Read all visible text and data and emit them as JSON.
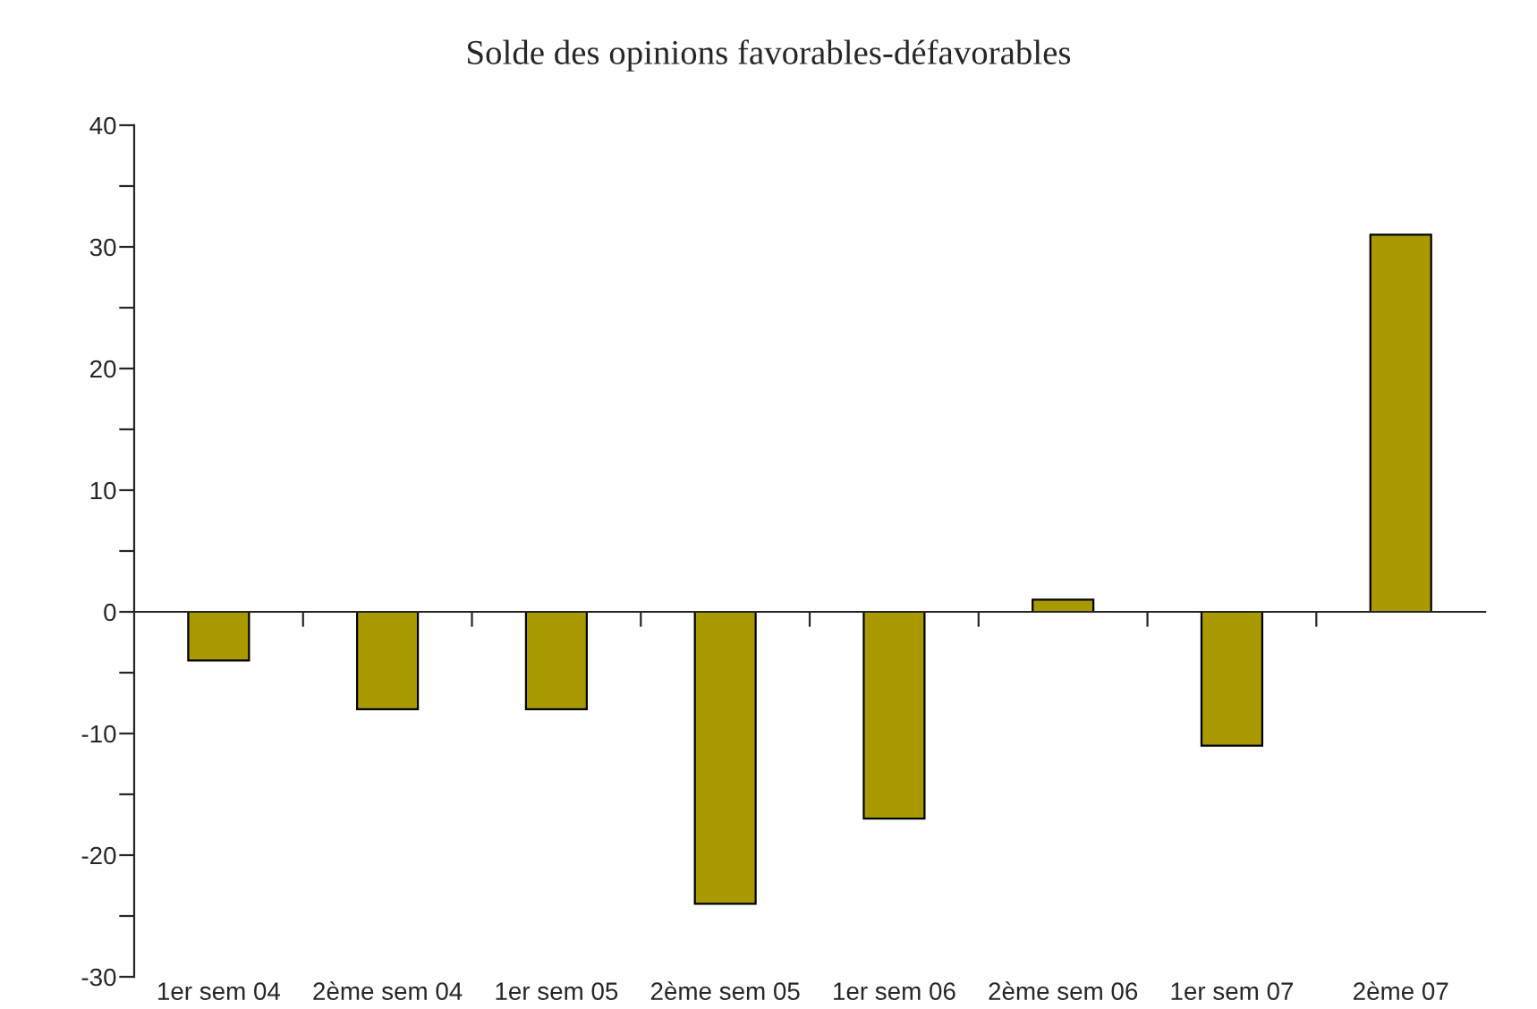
{
  "chart_data": {
    "type": "bar",
    "title": "Solde des opinions favorables-défavorables",
    "categories": [
      "1er sem 04",
      "2ème sem 04",
      "1er sem 05",
      "2ème sem 05",
      "1er sem 06",
      "2ème sem 06",
      "1er sem 07",
      "2ème 07"
    ],
    "values": [
      -4,
      -8,
      -8,
      -24,
      -17,
      1,
      -11,
      31
    ],
    "color": "#a89a00",
    "ylim": [
      -30,
      40
    ],
    "yticks": [
      -30,
      {
        "value": -25,
        "label": null
      },
      -20,
      {
        "value": -15,
        "label": null
      },
      -10,
      {
        "value": -5,
        "label": null
      },
      0,
      {
        "value": 5,
        "label": null
      },
      10,
      {
        "value": 15,
        "label": null
      },
      20,
      {
        "value": 25,
        "label": null
      },
      30,
      {
        "value": 35,
        "label": null
      },
      40
    ]
  }
}
